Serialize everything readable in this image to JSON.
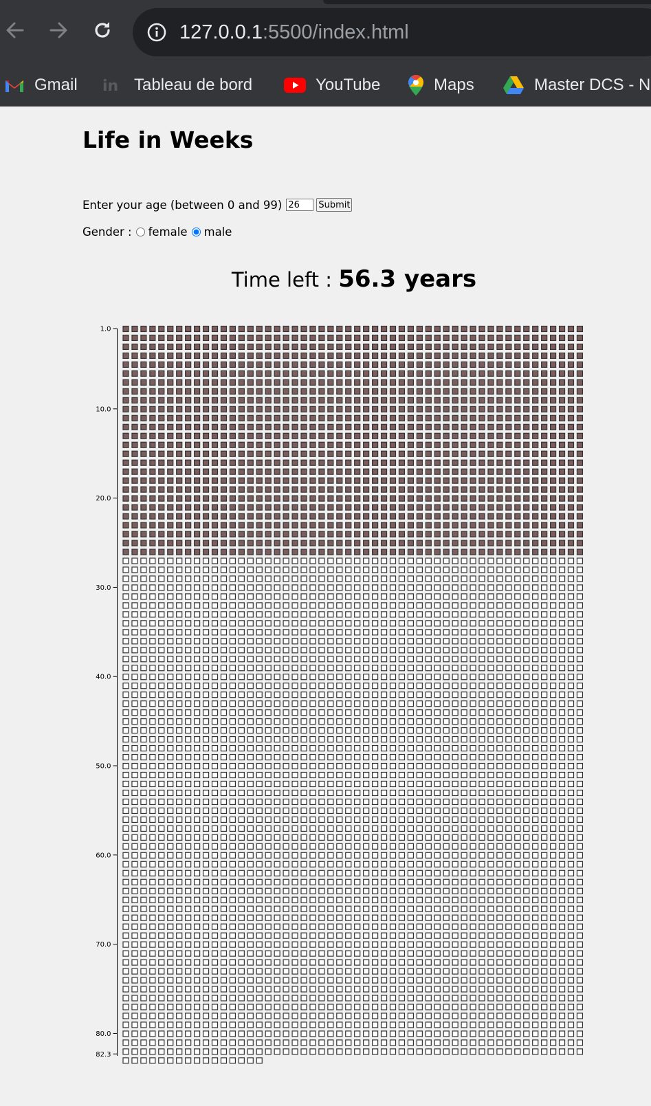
{
  "browser": {
    "url_host": "127.0.0.1",
    "url_rest": ":5500/index.html",
    "bookmarks": [
      {
        "label": "Gmail",
        "icon": "gmail-icon"
      },
      {
        "label": "Tableau de bord",
        "icon": "dashboard-icon"
      },
      {
        "label": "YouTube",
        "icon": "youtube-icon"
      },
      {
        "label": "Maps",
        "icon": "maps-pin-icon"
      },
      {
        "label": "Master DCS - N",
        "icon": "google-drive-icon"
      }
    ]
  },
  "page": {
    "title": "Life in Weeks",
    "age_prompt": "Enter your age (between 0 and 99)",
    "age_value": "26",
    "submit_label": "Submit",
    "gender_label": "Gender :",
    "gender_options": [
      {
        "label": "female",
        "checked": false
      },
      {
        "label": "male",
        "checked": true
      }
    ],
    "time_left_label": "Time left :",
    "time_left_value": "56.3 years"
  },
  "chart_data": {
    "type": "heatmap",
    "description_units": "weeks per year grid",
    "weeks_per_row": 52,
    "age_years": 26,
    "life_expectancy_years": 82.3,
    "lived_color": "#7b5d5d",
    "remaining_color": "#ffffff",
    "y_ticks": [
      "1.0",
      "10.0",
      "20.0",
      "30.0",
      "40.0",
      "50.0",
      "60.0",
      "70.0",
      "80.0",
      "82.3"
    ],
    "y_tick_values": [
      1,
      10,
      20,
      30,
      40,
      50,
      60,
      70,
      80,
      82.3
    ]
  }
}
